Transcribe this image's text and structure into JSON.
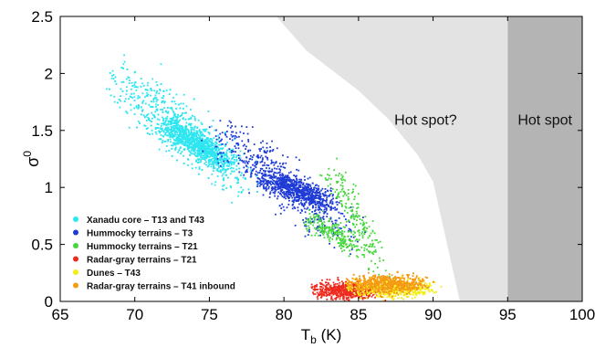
{
  "chart_data": {
    "type": "scatter",
    "xlabel": "T",
    "xlabel_sub": "b",
    "xlabel_unit": " (K)",
    "ylabel": "σ",
    "ylabel_sup": "0",
    "xlim": [
      65,
      100
    ],
    "ylim": [
      0,
      2.5
    ],
    "xticks": [
      "65",
      "70",
      "75",
      "80",
      "85",
      "90",
      "95",
      "100"
    ],
    "yticks": [
      "0",
      "0.5",
      "1",
      "1.5",
      "2",
      "2.5"
    ],
    "grid": false,
    "legend_position": "bottom-left",
    "regions": [
      {
        "label": "Hot spot?",
        "color": "#e3e3e3",
        "label_x": 89.5,
        "label_y": 1.55,
        "boundary": [
          [
            79.5,
            2.5
          ],
          [
            81.5,
            2.2
          ],
          [
            85,
            1.85
          ],
          [
            87,
            1.6
          ],
          [
            89,
            1.28
          ],
          [
            90,
            1.05
          ],
          [
            91.8,
            0
          ],
          [
            95,
            0
          ],
          [
            95,
            2.5
          ]
        ]
      },
      {
        "label": "Hot spot",
        "color": "#b4b4b4",
        "label_x": 97.5,
        "label_y": 1.55,
        "boundary": [
          [
            95,
            2.5
          ],
          [
            95,
            0
          ],
          [
            100,
            0
          ],
          [
            100,
            2.5
          ]
        ]
      }
    ],
    "series": [
      {
        "name": "Xanadu core – T13 and T43",
        "color": "#2ee6f0",
        "count": 1800,
        "clusters": [
          {
            "x": [
              68.8,
              77.5
            ],
            "y": [
              1.97,
              1.02
            ],
            "spread_along": 0.55,
            "spread_perp": 0.13
          },
          {
            "x": [
              72.0,
              76.5
            ],
            "y": [
              1.55,
              1.2
            ],
            "spread_along": 0.6,
            "spread_perp": 0.1
          }
        ]
      },
      {
        "name": "Hummocky terrains – T3",
        "color": "#1f3bd6",
        "count": 1200,
        "clusters": [
          {
            "x": [
              75.5,
              84.5
            ],
            "y": [
              1.5,
              0.55
            ],
            "spread_along": 0.55,
            "spread_perp": 0.11
          },
          {
            "x": [
              78.5,
              83.5
            ],
            "y": [
              1.1,
              0.85
            ],
            "spread_along": 0.5,
            "spread_perp": 0.09
          }
        ]
      },
      {
        "name": "Hummocky terrains – T21",
        "color": "#44d63c",
        "count": 420,
        "clusters": [
          {
            "x": [
              83.0,
              86.5
            ],
            "y": [
              1.2,
              0.25
            ],
            "spread_along": 0.55,
            "spread_perp": 0.08
          },
          {
            "x": [
              81.5,
              85.0
            ],
            "y": [
              0.75,
              0.45
            ],
            "spread_along": 0.5,
            "spread_perp": 0.07
          }
        ]
      },
      {
        "name": "Radar-gray terrains – T21",
        "color": "#ee2a1e",
        "count": 650,
        "clusters": [
          {
            "x": [
              82.0,
              86.5
            ],
            "y": [
              0.1,
              0.1
            ],
            "spread_along": 0.55,
            "spread_perp": 0.04
          }
        ]
      },
      {
        "name": "Dunes – T43",
        "color": "#f4ee14",
        "count": 650,
        "clusters": [
          {
            "x": [
              84.5,
              90.0
            ],
            "y": [
              0.12,
              0.12
            ],
            "spread_along": 0.55,
            "spread_perp": 0.05
          }
        ]
      },
      {
        "name": "Radar-gray terrains – T41 inbound",
        "color": "#f49a14",
        "count": 800,
        "clusters": [
          {
            "x": [
              84.5,
              89.5
            ],
            "y": [
              0.16,
              0.16
            ],
            "spread_along": 0.55,
            "spread_perp": 0.05
          }
        ]
      }
    ]
  }
}
